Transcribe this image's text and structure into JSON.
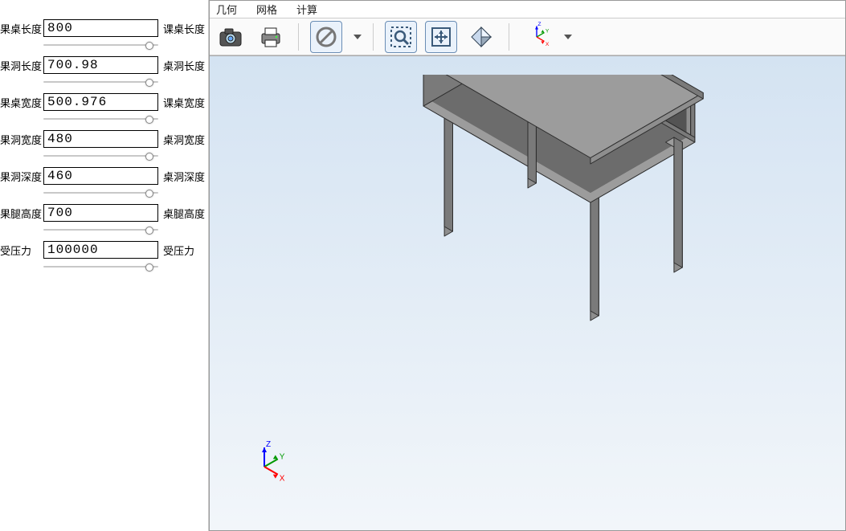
{
  "params": [
    {
      "label_left": "果桌长度",
      "value": "800",
      "label_right": "课桌长度"
    },
    {
      "label_left": "果洞长度",
      "value": "700.98",
      "label_right": "桌洞长度"
    },
    {
      "label_left": "果桌宽度",
      "value": "500.976",
      "label_right": "课桌宽度"
    },
    {
      "label_left": "果洞宽度",
      "value": "480",
      "label_right": "桌洞宽度"
    },
    {
      "label_left": "果洞深度",
      "value": "460",
      "label_right": "桌洞深度"
    },
    {
      "label_left": "果腿高度",
      "value": "700",
      "label_right": "桌腿高度"
    },
    {
      "label_left": "受压力",
      "value": "100000",
      "label_right": "受压力"
    }
  ],
  "menu": {
    "items": [
      "几何",
      "网格",
      "计算"
    ]
  },
  "toolbar": {
    "items": [
      {
        "name": "screenshot-icon"
      },
      {
        "name": "print-icon"
      },
      {
        "sep": true
      },
      {
        "name": "forbidden-icon",
        "framed": true,
        "dropdown": true
      },
      {
        "sep": true
      },
      {
        "name": "zoom-window-icon",
        "framed": true
      },
      {
        "name": "fit-view-icon",
        "framed": true
      },
      {
        "name": "diamond-view-icon"
      },
      {
        "sep": true
      },
      {
        "name": "axes-widget",
        "dropdown": true
      }
    ]
  },
  "axes": {
    "x_color": "#ff0000",
    "x_label": "X",
    "y_color": "#009900",
    "y_label": "Y",
    "z_color": "#0000ff",
    "z_label": "Z"
  },
  "viewport": {
    "bg_top": "#d4e3f2",
    "bg_bottom": "#f2f6fa",
    "model": {
      "type": "3d-desk-isometric",
      "face_top": "#9c9c9c",
      "face_left": "#7a7a7a",
      "face_right": "#8e8e8e",
      "edge": "#2d2d2d",
      "shelf_dark": "#4a4a4a"
    }
  }
}
